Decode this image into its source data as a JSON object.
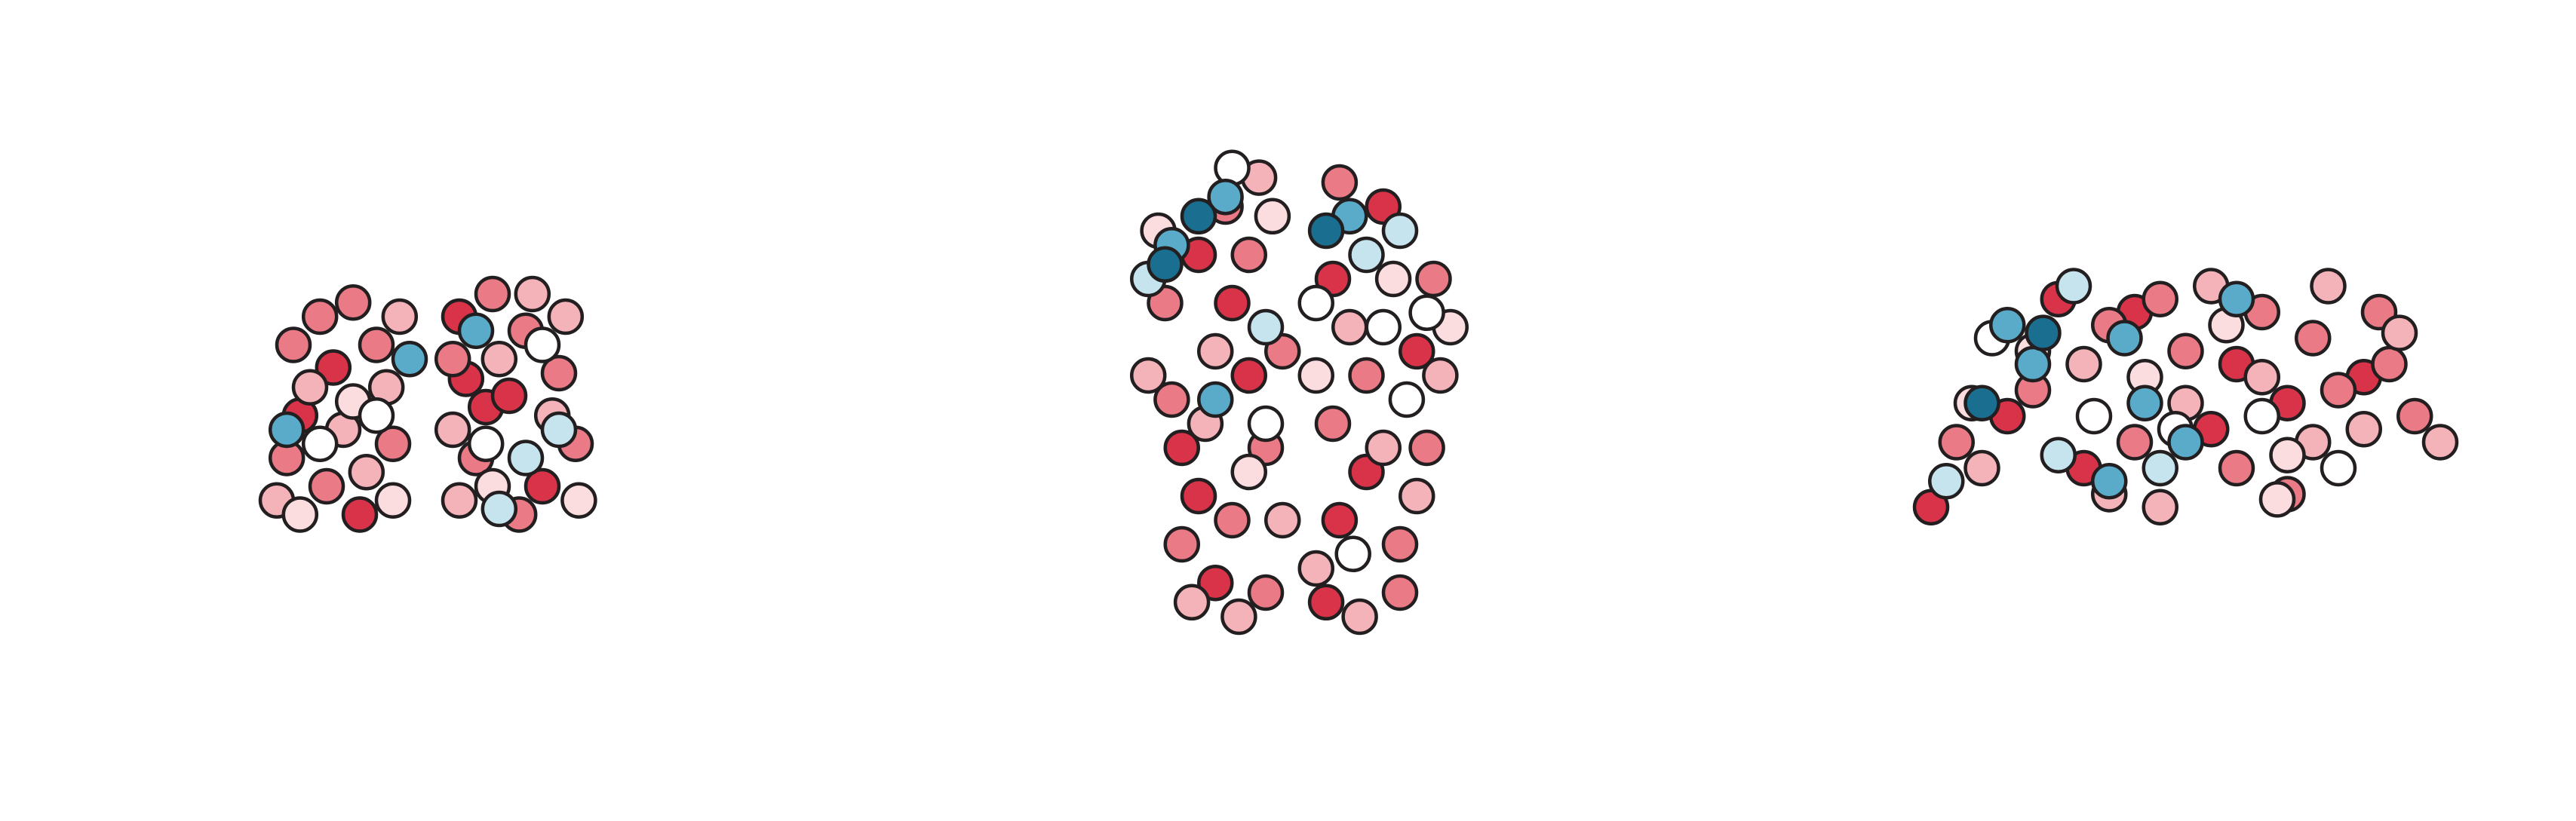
{
  "chart_data": [
    {
      "type": "scatter",
      "xlim": [
        0,
        100
      ],
      "ylim": [
        0,
        100
      ],
      "series": [
        {
          "color": "#d9334a",
          "x": [
            22,
            12,
            30,
            60,
            68,
            75,
            85,
            62
          ],
          "y": [
            62,
            45,
            10,
            80,
            48,
            52,
            20,
            58
          ]
        },
        {
          "color": "#ea7a86",
          "x": [
            10,
            18,
            28,
            35,
            8,
            20,
            40,
            58,
            70,
            80,
            90,
            65,
            78,
            95
          ],
          "y": [
            70,
            80,
            85,
            70,
            30,
            20,
            35,
            65,
            88,
            75,
            60,
            30,
            10,
            35
          ]
        },
        {
          "color": "#f4b3b9",
          "x": [
            15,
            25,
            38,
            5,
            32,
            42,
            58,
            72,
            88,
            92,
            60,
            82
          ],
          "y": [
            55,
            40,
            55,
            15,
            25,
            80,
            40,
            65,
            45,
            80,
            15,
            88
          ]
        },
        {
          "color": "#fbdcdf",
          "x": [
            28,
            12,
            40,
            70,
            96
          ],
          "y": [
            50,
            10,
            15,
            20,
            15
          ]
        },
        {
          "color": "#ffffff",
          "x": [
            18,
            35,
            68,
            85
          ],
          "y": [
            35,
            45,
            35,
            70
          ]
        },
        {
          "color": "#c5e4ee",
          "x": [
            80,
            90,
            72
          ],
          "y": [
            30,
            40,
            12
          ]
        },
        {
          "color": "#5aabc9",
          "x": [
            8,
            45,
            65
          ],
          "y": [
            40,
            65,
            75
          ]
        }
      ]
    },
    {
      "type": "scatter",
      "xlim": [
        0,
        100
      ],
      "ylim": [
        0,
        100
      ],
      "series": [
        {
          "color": "#d9334a",
          "x": [
            20,
            30,
            35,
            15,
            60,
            62,
            75,
            85,
            25,
            58,
            70,
            20
          ],
          "y": [
            80,
            70,
            55,
            40,
            75,
            25,
            90,
            60,
            12,
            8,
            35,
            30
          ]
        },
        {
          "color": "#ea7a86",
          "x": [
            10,
            28,
            40,
            12,
            30,
            40,
            62,
            70,
            88,
            80,
            60,
            90,
            35,
            45,
            15,
            80
          ],
          "y": [
            70,
            90,
            40,
            50,
            25,
            10,
            95,
            55,
            40,
            20,
            45,
            75,
            80,
            60,
            20,
            10
          ]
        },
        {
          "color": "#f4b3b9",
          "x": [
            25,
            5,
            38,
            22,
            45,
            65,
            92,
            75,
            55,
            85,
            68,
            32,
            18
          ],
          "y": [
            60,
            55,
            96,
            45,
            25,
            65,
            55,
            40,
            15,
            30,
            5,
            5,
            8
          ]
        },
        {
          "color": "#fbdcdf",
          "x": [
            35,
            8,
            95,
            55,
            78,
            42
          ],
          "y": [
            35,
            85,
            65,
            55,
            75,
            88
          ]
        },
        {
          "color": "#ffffff",
          "x": [
            30,
            55,
            75,
            88,
            40,
            66,
            82
          ],
          "y": [
            98,
            70,
            65,
            68,
            45,
            18,
            50
          ]
        },
        {
          "color": "#c5e4ee",
          "x": [
            5,
            80,
            70,
            40
          ],
          "y": [
            75,
            85,
            80,
            65
          ]
        },
        {
          "color": "#5aabc9",
          "x": [
            12,
            28,
            65,
            25
          ],
          "y": [
            82,
            92,
            88,
            50
          ]
        },
        {
          "color": "#1a6f91",
          "x": [
            20,
            58,
            10
          ],
          "y": [
            88,
            85,
            78
          ]
        }
      ]
    },
    {
      "type": "scatter",
      "xlim": [
        0,
        100
      ],
      "ylim": [
        0,
        100
      ],
      "series": [
        {
          "color": "#d9334a",
          "x": [
            25,
            15,
            30,
            60,
            70,
            0,
            55,
            85,
            40
          ],
          "y": [
            85,
            40,
            20,
            60,
            45,
            5,
            35,
            55,
            80
          ]
        },
        {
          "color": "#ea7a86",
          "x": [
            35,
            45,
            50,
            65,
            75,
            80,
            90,
            95,
            40,
            20,
            60,
            70,
            88,
            5
          ],
          "y": [
            75,
            85,
            65,
            80,
            70,
            50,
            60,
            40,
            30,
            50,
            20,
            10,
            80,
            30
          ]
        },
        {
          "color": "#f4b3b9",
          "x": [
            30,
            50,
            55,
            65,
            75,
            85,
            100,
            10,
            35,
            45,
            78,
            92
          ],
          "y": [
            60,
            45,
            90,
            55,
            30,
            35,
            30,
            20,
            10,
            5,
            90,
            72
          ]
        },
        {
          "color": "#fbdcdf",
          "x": [
            20,
            42,
            58,
            70,
            8,
            68
          ],
          "y": [
            65,
            55,
            75,
            25,
            45,
            8
          ]
        },
        {
          "color": "#ffffff",
          "x": [
            32,
            48,
            65,
            80,
            12
          ],
          "y": [
            40,
            35,
            40,
            20,
            70
          ]
        },
        {
          "color": "#c5e4ee",
          "x": [
            28,
            45,
            25,
            3
          ],
          "y": [
            90,
            20,
            25,
            15
          ]
        },
        {
          "color": "#5aabc9",
          "x": [
            15,
            20,
            38,
            42,
            50,
            60,
            35
          ],
          "y": [
            75,
            60,
            70,
            45,
            30,
            85,
            15
          ]
        },
        {
          "color": "#1a6f91",
          "x": [
            10,
            22
          ],
          "y": [
            45,
            72
          ]
        }
      ]
    }
  ]
}
